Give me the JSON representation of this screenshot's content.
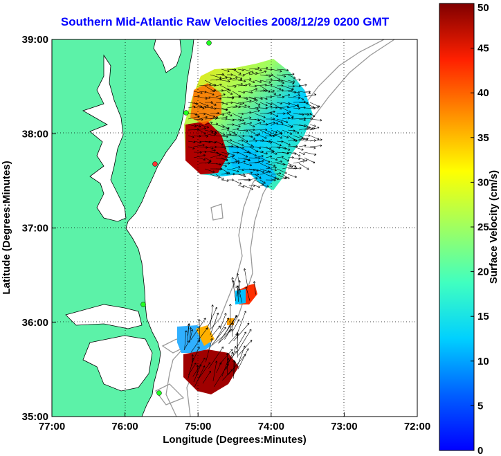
{
  "title": "Southern Mid-Atlantic Raw Velocities 2008/12/29 0200 GMT",
  "map": {
    "xlabel": "Longitude (Degrees:Minutes)",
    "ylabel": "Latitude (Degrees:Minutes)",
    "lon_range": [
      -77,
      -72
    ],
    "lat_range": [
      35,
      39
    ],
    "x_ticks": [
      {
        "value": -77,
        "label": "77:00"
      },
      {
        "value": -76,
        "label": "76:00"
      },
      {
        "value": -75,
        "label": "75:00"
      },
      {
        "value": -74,
        "label": "74:00"
      },
      {
        "value": -73,
        "label": "73:00"
      },
      {
        "value": -72,
        "label": "72:00"
      }
    ],
    "y_ticks": [
      {
        "value": 35,
        "label": "35:00"
      },
      {
        "value": 36,
        "label": "36:00"
      },
      {
        "value": 37,
        "label": "37:00"
      },
      {
        "value": 38,
        "label": "38:00"
      },
      {
        "value": 39,
        "label": "39:00"
      }
    ],
    "land_color": "#5cf2a8",
    "grid": "dotted"
  },
  "colorbar": {
    "label": "Surface Velocity (cm/s)",
    "min": 0,
    "max": 50,
    "ticks": [
      "0",
      "5",
      "10",
      "15",
      "20",
      "25",
      "30",
      "35",
      "40",
      "45",
      "50"
    ],
    "colormap": "jet"
  }
}
